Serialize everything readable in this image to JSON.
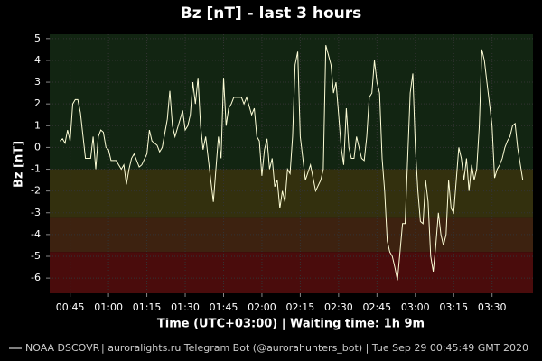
{
  "chart_data": {
    "type": "line",
    "title": "Bz [nT] - last 3 hours",
    "ylabel": "Bz [nT]",
    "xlabel": "Time (UTC+03:00) | Waiting time: 1h 9m",
    "footer": "| auroralights.ru Telegram Bot (@aurorahunters_bot) | Tue Sep 29 00:45:49 GMT 2020",
    "xlim": [
      "00:37",
      "03:46"
    ],
    "xticks": [
      "00:45",
      "01:00",
      "01:15",
      "01:30",
      "01:45",
      "02:00",
      "02:15",
      "02:30",
      "02:45",
      "03:00",
      "03:15",
      "03:30"
    ],
    "ylim": [
      -6.7,
      5.2
    ],
    "yticks": [
      -6,
      -5,
      -4,
      -3,
      -2,
      -1,
      0,
      1,
      2,
      3,
      4,
      5
    ],
    "grid": true,
    "band_thresholds": [
      -1,
      -3.2,
      -4.8
    ],
    "band_colors": [
      "#122512",
      "#33300e",
      "#3d2210",
      "#4a0c0c"
    ],
    "x": [
      "00:41",
      "00:42",
      "00:43",
      "00:44",
      "00:45",
      "00:46",
      "00:47",
      "00:48",
      "00:49",
      "00:51",
      "00:53",
      "00:54",
      "00:55",
      "00:56",
      "00:57",
      "00:58",
      "00:59",
      "01:00",
      "01:01",
      "01:03",
      "01:04",
      "01:05",
      "01:06",
      "01:07",
      "01:08",
      "01:09",
      "01:10",
      "01:12",
      "01:13",
      "01:15",
      "01:16",
      "01:17",
      "01:19",
      "01:20",
      "01:21",
      "01:23",
      "01:24",
      "01:25",
      "01:26",
      "01:28",
      "01:29",
      "01:30",
      "01:31",
      "01:32",
      "01:33",
      "01:34",
      "01:35",
      "01:36",
      "01:37",
      "01:38",
      "01:39",
      "01:40",
      "01:41",
      "01:42",
      "01:43",
      "01:44",
      "01:45",
      "01:46",
      "01:47",
      "01:48",
      "01:49",
      "01:50",
      "01:52",
      "01:53",
      "01:54",
      "01:55",
      "01:56",
      "01:57",
      "01:58",
      "01:59",
      "02:00",
      "02:01",
      "02:02",
      "02:03",
      "02:04",
      "02:05",
      "02:06",
      "02:07",
      "02:08",
      "02:09",
      "02:10",
      "02:11",
      "02:12",
      "02:13",
      "02:14",
      "02:15",
      "02:17",
      "02:19",
      "02:21",
      "02:23",
      "02:24",
      "02:25",
      "02:27",
      "02:28",
      "02:29",
      "02:30",
      "02:31",
      "02:32",
      "02:33",
      "02:34",
      "02:35",
      "02:36",
      "02:37",
      "02:39",
      "02:40",
      "02:41",
      "02:42",
      "02:43",
      "02:44",
      "02:45",
      "02:46",
      "02:47",
      "02:48",
      "02:49",
      "02:50",
      "02:51",
      "02:52",
      "02:53",
      "02:54",
      "02:55",
      "02:56",
      "02:57",
      "02:58",
      "02:59",
      "03:00",
      "03:01",
      "03:02",
      "03:03",
      "03:04",
      "03:05",
      "03:06",
      "03:07",
      "03:08",
      "03:09",
      "03:10",
      "03:11",
      "03:12",
      "03:13",
      "03:14",
      "03:15",
      "03:16",
      "03:17",
      "03:18",
      "03:19",
      "03:20",
      "03:21",
      "03:22",
      "03:23",
      "03:24",
      "03:25",
      "03:26",
      "03:27",
      "03:28",
      "03:29",
      "03:30",
      "03:31",
      "03:32",
      "03:33",
      "03:34",
      "03:35",
      "03:36",
      "03:37",
      "03:38",
      "03:39",
      "03:40",
      "03:42"
    ],
    "series": [
      {
        "name": "NOAA DSCOVR",
        "color": "#ffffd8",
        "values": [
          0.3,
          0.4,
          0.2,
          0.8,
          0.3,
          2.0,
          2.2,
          2.2,
          1.6,
          -0.5,
          -0.5,
          0.5,
          -1.0,
          0.5,
          0.8,
          0.7,
          0.0,
          -0.1,
          -0.6,
          -0.6,
          -0.8,
          -1.0,
          -0.8,
          -1.7,
          -1.0,
          -0.5,
          -0.3,
          -0.9,
          -0.8,
          -0.3,
          0.8,
          0.3,
          0.1,
          -0.2,
          0.0,
          1.3,
          2.6,
          1.0,
          0.5,
          1.3,
          1.7,
          0.8,
          1.0,
          1.5,
          3.0,
          2.0,
          3.2,
          1.0,
          -0.1,
          0.5,
          -0.5,
          -1.5,
          -2.5,
          -1.0,
          0.5,
          -0.5,
          3.2,
          1.0,
          1.8,
          2.0,
          2.3,
          2.3,
          2.3,
          2.0,
          2.3,
          1.9,
          1.5,
          1.8,
          0.5,
          0.3,
          -1.3,
          -0.1,
          0.4,
          -1.0,
          -0.5,
          -1.8,
          -1.5,
          -2.8,
          -2.0,
          -2.5,
          -1.0,
          -1.2,
          0.5,
          3.8,
          4.4,
          0.5,
          -1.5,
          -0.8,
          -2.0,
          -1.5,
          -1.0,
          4.7,
          3.8,
          2.5,
          3.0,
          1.5,
          0.0,
          -0.8,
          1.8,
          0.0,
          -0.5,
          -0.5,
          0.5,
          -0.5,
          -0.6,
          0.5,
          2.3,
          2.5,
          4.0,
          3.0,
          2.5,
          -0.5,
          -2.0,
          -4.3,
          -4.8,
          -5.0,
          -5.5,
          -6.1,
          -4.8,
          -3.5,
          -3.5,
          -0.5,
          2.5,
          3.4,
          0.0,
          -2.0,
          -3.4,
          -3.5,
          -1.5,
          -2.5,
          -5.0,
          -5.7,
          -4.5,
          -3.0,
          -4.0,
          -4.5,
          -4.0,
          -1.5,
          -2.8,
          -3.0,
          -1.5,
          0.0,
          -0.5,
          -1.5,
          -0.5,
          -2.0,
          -0.8,
          -1.5,
          -1.0,
          1.0,
          4.5,
          4.0,
          3.0,
          2.0,
          1.0,
          -1.4,
          -1.0,
          -0.8,
          -0.5,
          0.0,
          0.3,
          0.5,
          1.0,
          1.1,
          0.0,
          -1.5
        ]
      }
    ]
  }
}
